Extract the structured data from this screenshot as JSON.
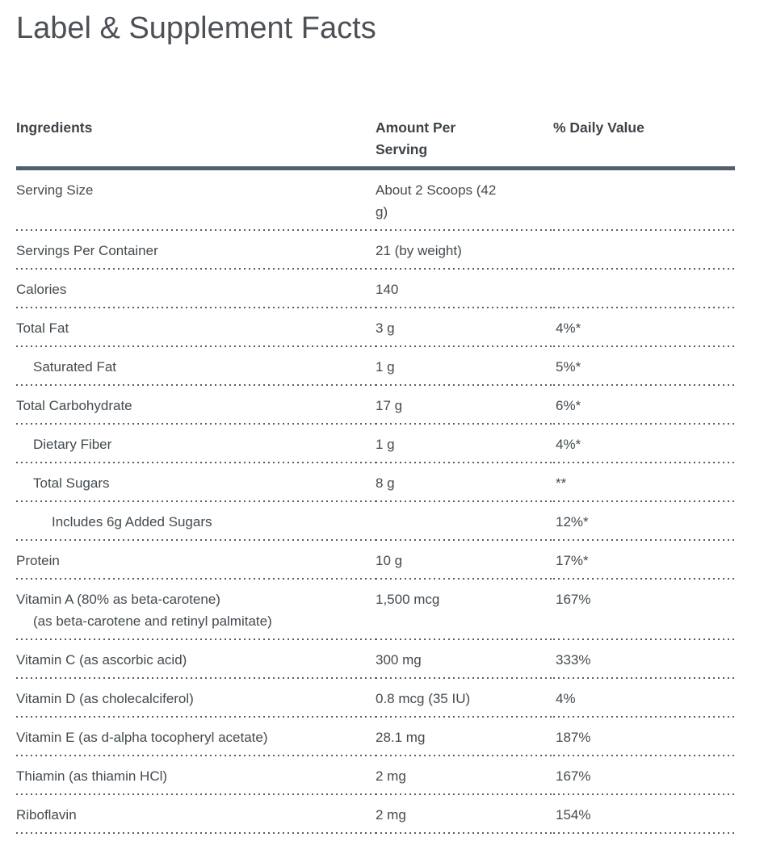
{
  "title": "Label & Supplement Facts",
  "colors": {
    "text": "#434a4f",
    "title_text": "#4d5156",
    "border": "#51606b",
    "background": "#ffffff"
  },
  "table": {
    "headers": [
      "Ingredients",
      "Amount Per Serving",
      "% Daily Value"
    ],
    "rows": [
      {
        "label": "Serving Size",
        "indent": 0,
        "amount": "About 2 Scoops (42 g)",
        "dv": ""
      },
      {
        "label": "Servings Per Container",
        "indent": 0,
        "amount": "21 (by weight)",
        "dv": ""
      },
      {
        "label": "Calories",
        "indent": 0,
        "amount": "140",
        "dv": ""
      },
      {
        "label": "Total Fat",
        "indent": 0,
        "amount": "3 g",
        "dv": "4%*"
      },
      {
        "label": "Saturated Fat",
        "indent": 1,
        "amount": "1 g",
        "dv": "5%*"
      },
      {
        "label": "Total Carbohydrate",
        "indent": 0,
        "amount": "17 g",
        "dv": "6%*"
      },
      {
        "label": "Dietary Fiber",
        "indent": 1,
        "amount": "1 g",
        "dv": "4%*"
      },
      {
        "label": "Total Sugars",
        "indent": 1,
        "amount": "8 g",
        "dv": "**"
      },
      {
        "label": "Includes 6g Added Sugars",
        "indent": 2,
        "amount": "",
        "dv": "12%*"
      },
      {
        "label": "Protein",
        "indent": 0,
        "amount": "10 g",
        "dv": "17%*"
      },
      {
        "label": "Vitamin A (80% as beta-carotene)",
        "label2": "(as beta-carotene and retinyl palmitate)",
        "indent": 0,
        "amount": "1,500 mcg",
        "dv": "167%"
      },
      {
        "label": "Vitamin C (as ascorbic acid)",
        "indent": 0,
        "amount": "300 mg",
        "dv": "333%"
      },
      {
        "label": "Vitamin D (as cholecalciferol)",
        "indent": 0,
        "amount": "0.8 mcg (35 IU)",
        "dv": "4%"
      },
      {
        "label": "Vitamin E (as d-alpha tocopheryl acetate)",
        "indent": 0,
        "amount": "28.1 mg",
        "dv": "187%"
      },
      {
        "label": "Thiamin (as thiamin HCl)",
        "indent": 0,
        "amount": "2 mg",
        "dv": "167%"
      },
      {
        "label": "Riboflavin",
        "indent": 0,
        "amount": "2 mg",
        "dv": "154%"
      }
    ]
  }
}
